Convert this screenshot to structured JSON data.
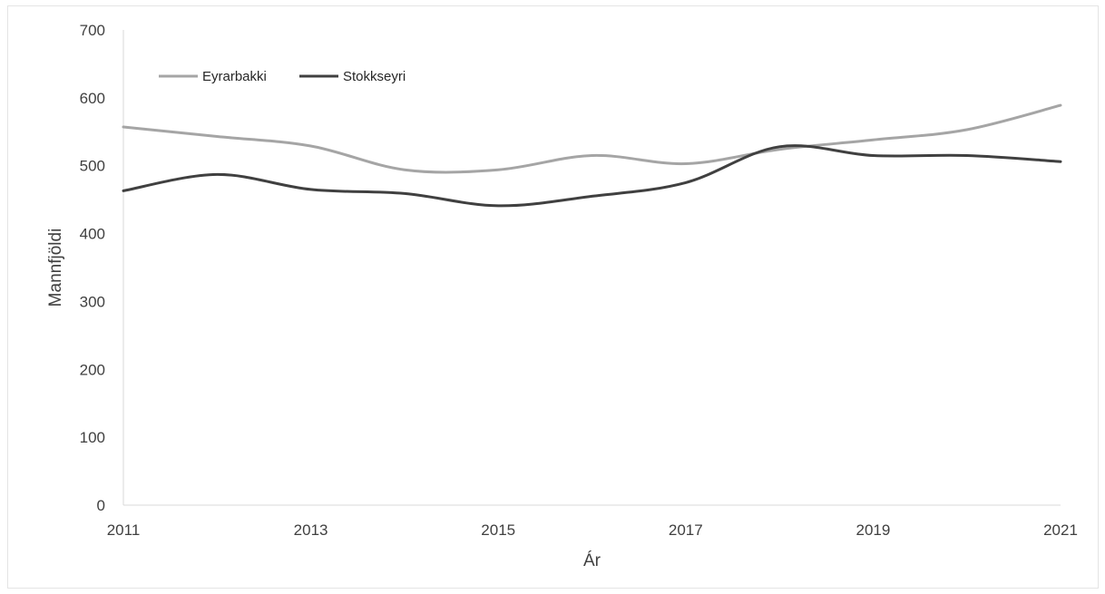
{
  "chart_data": {
    "type": "line",
    "title": "",
    "xlabel": "Ár",
    "ylabel": "Mannfjöldi",
    "x": [
      2011,
      2012,
      2013,
      2014,
      2015,
      2016,
      2017,
      2018,
      2019,
      2020,
      2021
    ],
    "x_ticks": [
      "2011",
      "2013",
      "2015",
      "2017",
      "2019",
      "2021"
    ],
    "y_ticks": [
      "0",
      "100",
      "200",
      "300",
      "400",
      "500",
      "600",
      "700"
    ],
    "xlim": [
      2011,
      2021
    ],
    "ylim": [
      0,
      700
    ],
    "grid": false,
    "legend_position": "top-left",
    "series": [
      {
        "name": "Eyrarbakki",
        "color": "#a5a5a5",
        "values": [
          557,
          543,
          529,
          494,
          494,
          515,
          503,
          524,
          538,
          553,
          589
        ]
      },
      {
        "name": "Stokkseyri",
        "color": "#404040",
        "values": [
          463,
          487,
          465,
          459,
          441,
          455,
          475,
          528,
          515,
          515,
          506
        ]
      }
    ]
  }
}
